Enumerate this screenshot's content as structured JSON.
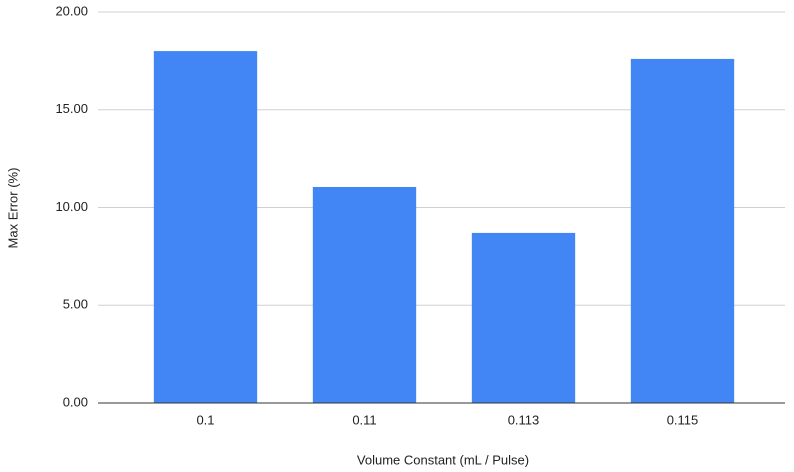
{
  "chart_data": {
    "type": "bar",
    "x_label": "Volume Constant (mL / Pulse)",
    "y_label": "Max Error (%)",
    "categories": [
      "0.1",
      "0.11",
      "0.113",
      "0.115"
    ],
    "values": [
      18.0,
      11.05,
      8.7,
      17.6
    ],
    "color": "#4285f4",
    "ylim": [
      0,
      20
    ],
    "yticks": [
      {
        "value": 0,
        "label": "0.00"
      },
      {
        "value": 5,
        "label": "5.00"
      },
      {
        "value": 10,
        "label": "10.00"
      },
      {
        "value": 15,
        "label": "15.00"
      },
      {
        "value": 20,
        "label": "20.00"
      }
    ],
    "grid": true
  }
}
